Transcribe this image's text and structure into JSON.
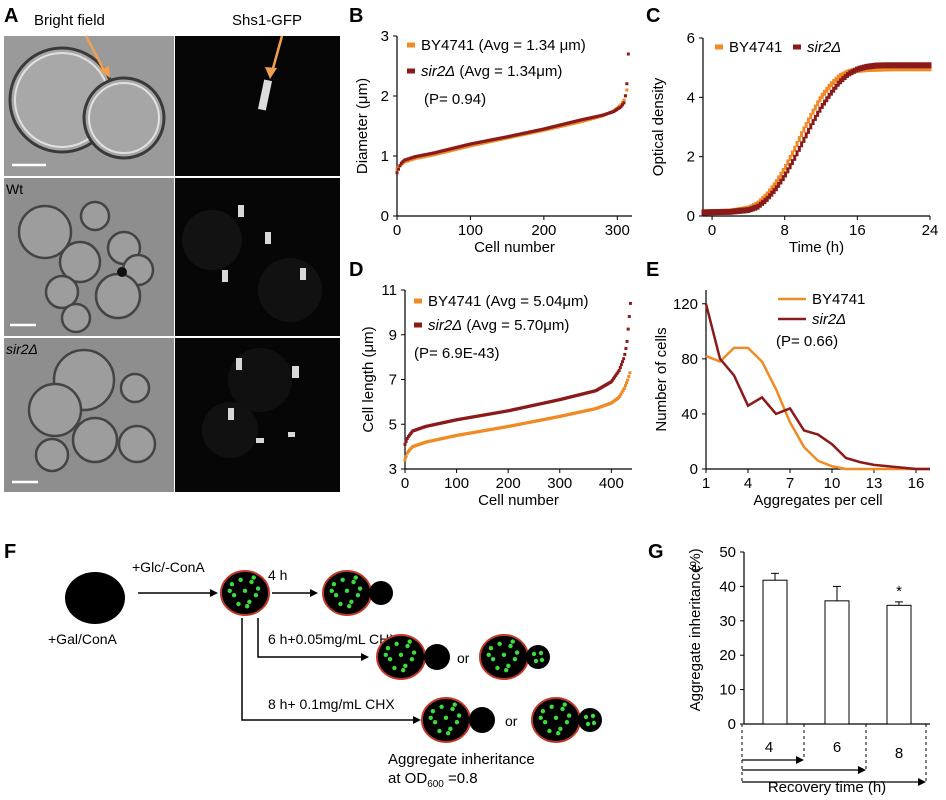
{
  "colors": {
    "wt": "#f08a24",
    "sir2": "#8b1a1a",
    "cell": "#000000",
    "cell_rim": "#c0392b",
    "aggregate": "#3ddc3d",
    "arrow_orange": "#f0a050"
  },
  "panels": {
    "A": {
      "letter": "A",
      "bright_field": "Bright field",
      "gfp": "Shs1-GFP",
      "row_wt": "Wt",
      "row_sir2": "sir2Δ"
    },
    "B": {
      "letter": "B"
    },
    "C": {
      "letter": "C"
    },
    "D": {
      "letter": "D"
    },
    "E": {
      "letter": "E"
    },
    "F": {
      "letter": "F",
      "start_label": "+Gal/ConA",
      "shift_label": "+Glc/-ConA",
      "branch1": "4 h",
      "branch2": "6 h+0.05mg/mL CHX",
      "branch3": "8 h+ 0.1mg/mL CHX",
      "or_label": "or",
      "readout_line1": "Aggregate inheritance",
      "readout_line2_prefix": "at OD",
      "readout_sub": "600",
      "readout_suffix": " =0.8"
    },
    "G": {
      "letter": "G"
    }
  },
  "chart_data": [
    {
      "id": "B",
      "type": "scatter",
      "xlabel": "Cell number",
      "ylabel": "Diameter (μm)",
      "xlim": [
        0,
        320
      ],
      "ylim": [
        0,
        3
      ],
      "xticks": [
        0,
        100,
        200,
        300
      ],
      "yticks": [
        0,
        1,
        2,
        3
      ],
      "series": [
        {
          "name": "BY4741 (Avg = 1.34 μm)",
          "color_key": "wt",
          "x": [
            0,
            5,
            10,
            25,
            50,
            100,
            150,
            200,
            250,
            280,
            295,
            305,
            310,
            313
          ],
          "y": [
            0.78,
            0.85,
            0.9,
            0.96,
            1.02,
            1.17,
            1.3,
            1.43,
            1.57,
            1.67,
            1.75,
            1.85,
            1.95,
            2.1
          ]
        },
        {
          "name": "sir2Δ (Avg = 1.34μm)",
          "color_key": "sir2",
          "x": [
            0,
            5,
            10,
            25,
            50,
            100,
            150,
            200,
            250,
            280,
            295,
            305,
            310,
            313,
            315
          ],
          "y": [
            0.72,
            0.87,
            0.93,
            0.99,
            1.05,
            1.2,
            1.32,
            1.45,
            1.6,
            1.68,
            1.74,
            1.82,
            1.9,
            2.2,
            2.7
          ]
        }
      ],
      "annotation": "(P= 0.94)"
    },
    {
      "id": "C",
      "type": "scatter",
      "xlabel": "Time (h)",
      "ylabel": "Optical density",
      "xlim": [
        -1,
        24
      ],
      "ylim": [
        0,
        6
      ],
      "xticks": [
        0,
        8,
        16,
        24
      ],
      "yticks": [
        0,
        2,
        4,
        6
      ],
      "series": [
        {
          "name": "BY4741",
          "color_key": "wt",
          "x": [
            -1,
            0,
            2,
            4,
            5,
            6,
            7,
            8,
            9,
            10,
            11,
            12,
            13,
            14,
            15,
            16,
            17,
            18,
            19,
            20,
            22,
            24
          ],
          "y": [
            0.12,
            0.13,
            0.15,
            0.25,
            0.4,
            0.7,
            1.1,
            1.6,
            2.2,
            2.85,
            3.45,
            4.0,
            4.4,
            4.7,
            4.85,
            4.92,
            4.95,
            4.96,
            4.97,
            4.98,
            4.98,
            4.98
          ]
        },
        {
          "name": "sir2Δ",
          "color_key": "sir2",
          "x": [
            -1,
            0,
            2,
            4,
            5,
            6,
            7,
            8,
            9,
            10,
            11,
            12,
            13,
            14,
            15,
            16,
            17,
            18,
            19,
            20,
            22,
            24
          ],
          "y": [
            0.12,
            0.13,
            0.14,
            0.2,
            0.3,
            0.55,
            0.9,
            1.35,
            1.9,
            2.5,
            3.1,
            3.65,
            4.1,
            4.5,
            4.78,
            4.95,
            5.03,
            5.07,
            5.08,
            5.08,
            5.08,
            5.08
          ]
        }
      ]
    },
    {
      "id": "D",
      "type": "scatter",
      "xlabel": "Cell number",
      "ylabel": "Cell length (μm)",
      "xlim": [
        0,
        440
      ],
      "ylim": [
        3,
        11
      ],
      "xticks": [
        0,
        100,
        200,
        300,
        400
      ],
      "yticks": [
        3,
        5,
        7,
        9,
        11
      ],
      "series": [
        {
          "name": "BY4741 (Avg = 5.04μm)",
          "color_key": "wt",
          "x": [
            0,
            5,
            15,
            40,
            100,
            200,
            300,
            370,
            400,
            415,
            425,
            432,
            436
          ],
          "y": [
            3.4,
            3.75,
            4.0,
            4.2,
            4.5,
            4.9,
            5.35,
            5.7,
            5.95,
            6.2,
            6.6,
            7.0,
            7.3
          ]
        },
        {
          "name": "sir2Δ (Avg = 5.70μm)",
          "color_key": "sir2",
          "x": [
            0,
            5,
            15,
            40,
            100,
            200,
            300,
            370,
            400,
            415,
            425,
            430,
            434,
            437
          ],
          "y": [
            4.1,
            4.4,
            4.7,
            4.9,
            5.2,
            5.6,
            6.1,
            6.5,
            6.9,
            7.4,
            8.0,
            8.6,
            9.6,
            10.4
          ]
        }
      ],
      "annotation": "(P= 6.9E-43)"
    },
    {
      "id": "E",
      "type": "line",
      "xlabel": "Aggregates per cell",
      "ylabel": "Number of cells",
      "xlim": [
        1,
        17
      ],
      "ylim": [
        0,
        130
      ],
      "xticks": [
        1,
        4,
        7,
        10,
        13,
        16
      ],
      "yticks": [
        0,
        40,
        80,
        120
      ],
      "series": [
        {
          "name": "BY4741",
          "color_key": "wt",
          "x": [
            1,
            2,
            3,
            4,
            5,
            6,
            7,
            8,
            9,
            10,
            11,
            12,
            13,
            14,
            15,
            16,
            17
          ],
          "y": [
            82,
            78,
            88,
            88,
            78,
            58,
            34,
            16,
            6,
            2,
            0,
            0,
            0,
            0,
            0,
            0,
            0
          ]
        },
        {
          "name": "sir2Δ",
          "color_key": "sir2",
          "x": [
            1,
            2,
            3,
            4,
            5,
            6,
            7,
            8,
            9,
            10,
            11,
            12,
            13,
            14,
            15,
            16,
            17
          ],
          "y": [
            120,
            80,
            68,
            46,
            52,
            40,
            44,
            28,
            25,
            18,
            8,
            5,
            3,
            2,
            1,
            0,
            0
          ]
        }
      ],
      "annotation": "(P= 0.66)"
    },
    {
      "id": "G",
      "type": "bar",
      "xlabel": "Recovery time (h)",
      "ylabel": "Aggregate inheritance",
      "ylabel_unit": "(%)",
      "ylim": [
        0,
        50
      ],
      "yticks": [
        0,
        10,
        20,
        30,
        40,
        50
      ],
      "categories": [
        "4",
        "6",
        "8"
      ],
      "values": [
        41.8,
        35.8,
        34.5
      ],
      "errors": [
        2.0,
        4.2,
        1.0
      ],
      "significance": [
        "",
        "",
        "*"
      ]
    }
  ]
}
